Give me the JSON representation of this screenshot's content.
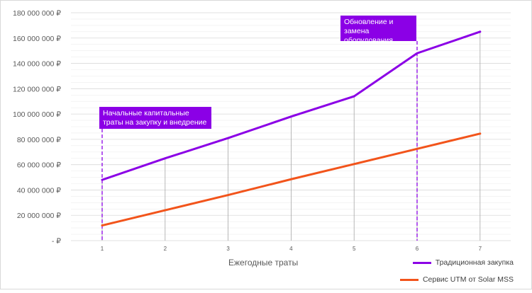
{
  "chart_data": {
    "type": "line",
    "title": "",
    "xlabel": "Ежегодные траты",
    "ylabel": "",
    "x": [
      1,
      2,
      3,
      4,
      5,
      6,
      7
    ],
    "ylim": [
      0,
      180000000
    ],
    "ytick_labels": [
      "- ₽",
      "20 000 000 ₽",
      "40 000 000 ₽",
      "60 000 000 ₽",
      "80 000 000 ₽",
      "100 000 000 ₽",
      "120 000 000 ₽",
      "140 000 000 ₽",
      "160 000 000 ₽",
      "180 000 000 ₽"
    ],
    "xtick_labels": [
      "1",
      "2",
      "3",
      "4",
      "5",
      "6",
      "7"
    ],
    "grid": true,
    "legend_position": "bottom-right",
    "series": [
      {
        "name": "Традиционная закупка",
        "color": "#8B00E6",
        "values": [
          48000000,
          65000000,
          81000000,
          98000000,
          114000000,
          148000000,
          165000000
        ]
      },
      {
        "name": "Сервис UTM от Solar MSS",
        "color": "#F2541B",
        "values": [
          12000000,
          24000000,
          36000000,
          48500000,
          60500000,
          72500000,
          84500000
        ]
      }
    ],
    "annotations": [
      {
        "text": "Начальные капитальные траты на закупку и внедрение",
        "x": 1,
        "color": "#8B00E6"
      },
      {
        "text": "Обновление и замена оборудования",
        "x": 6,
        "color": "#8B00E6"
      }
    ]
  }
}
